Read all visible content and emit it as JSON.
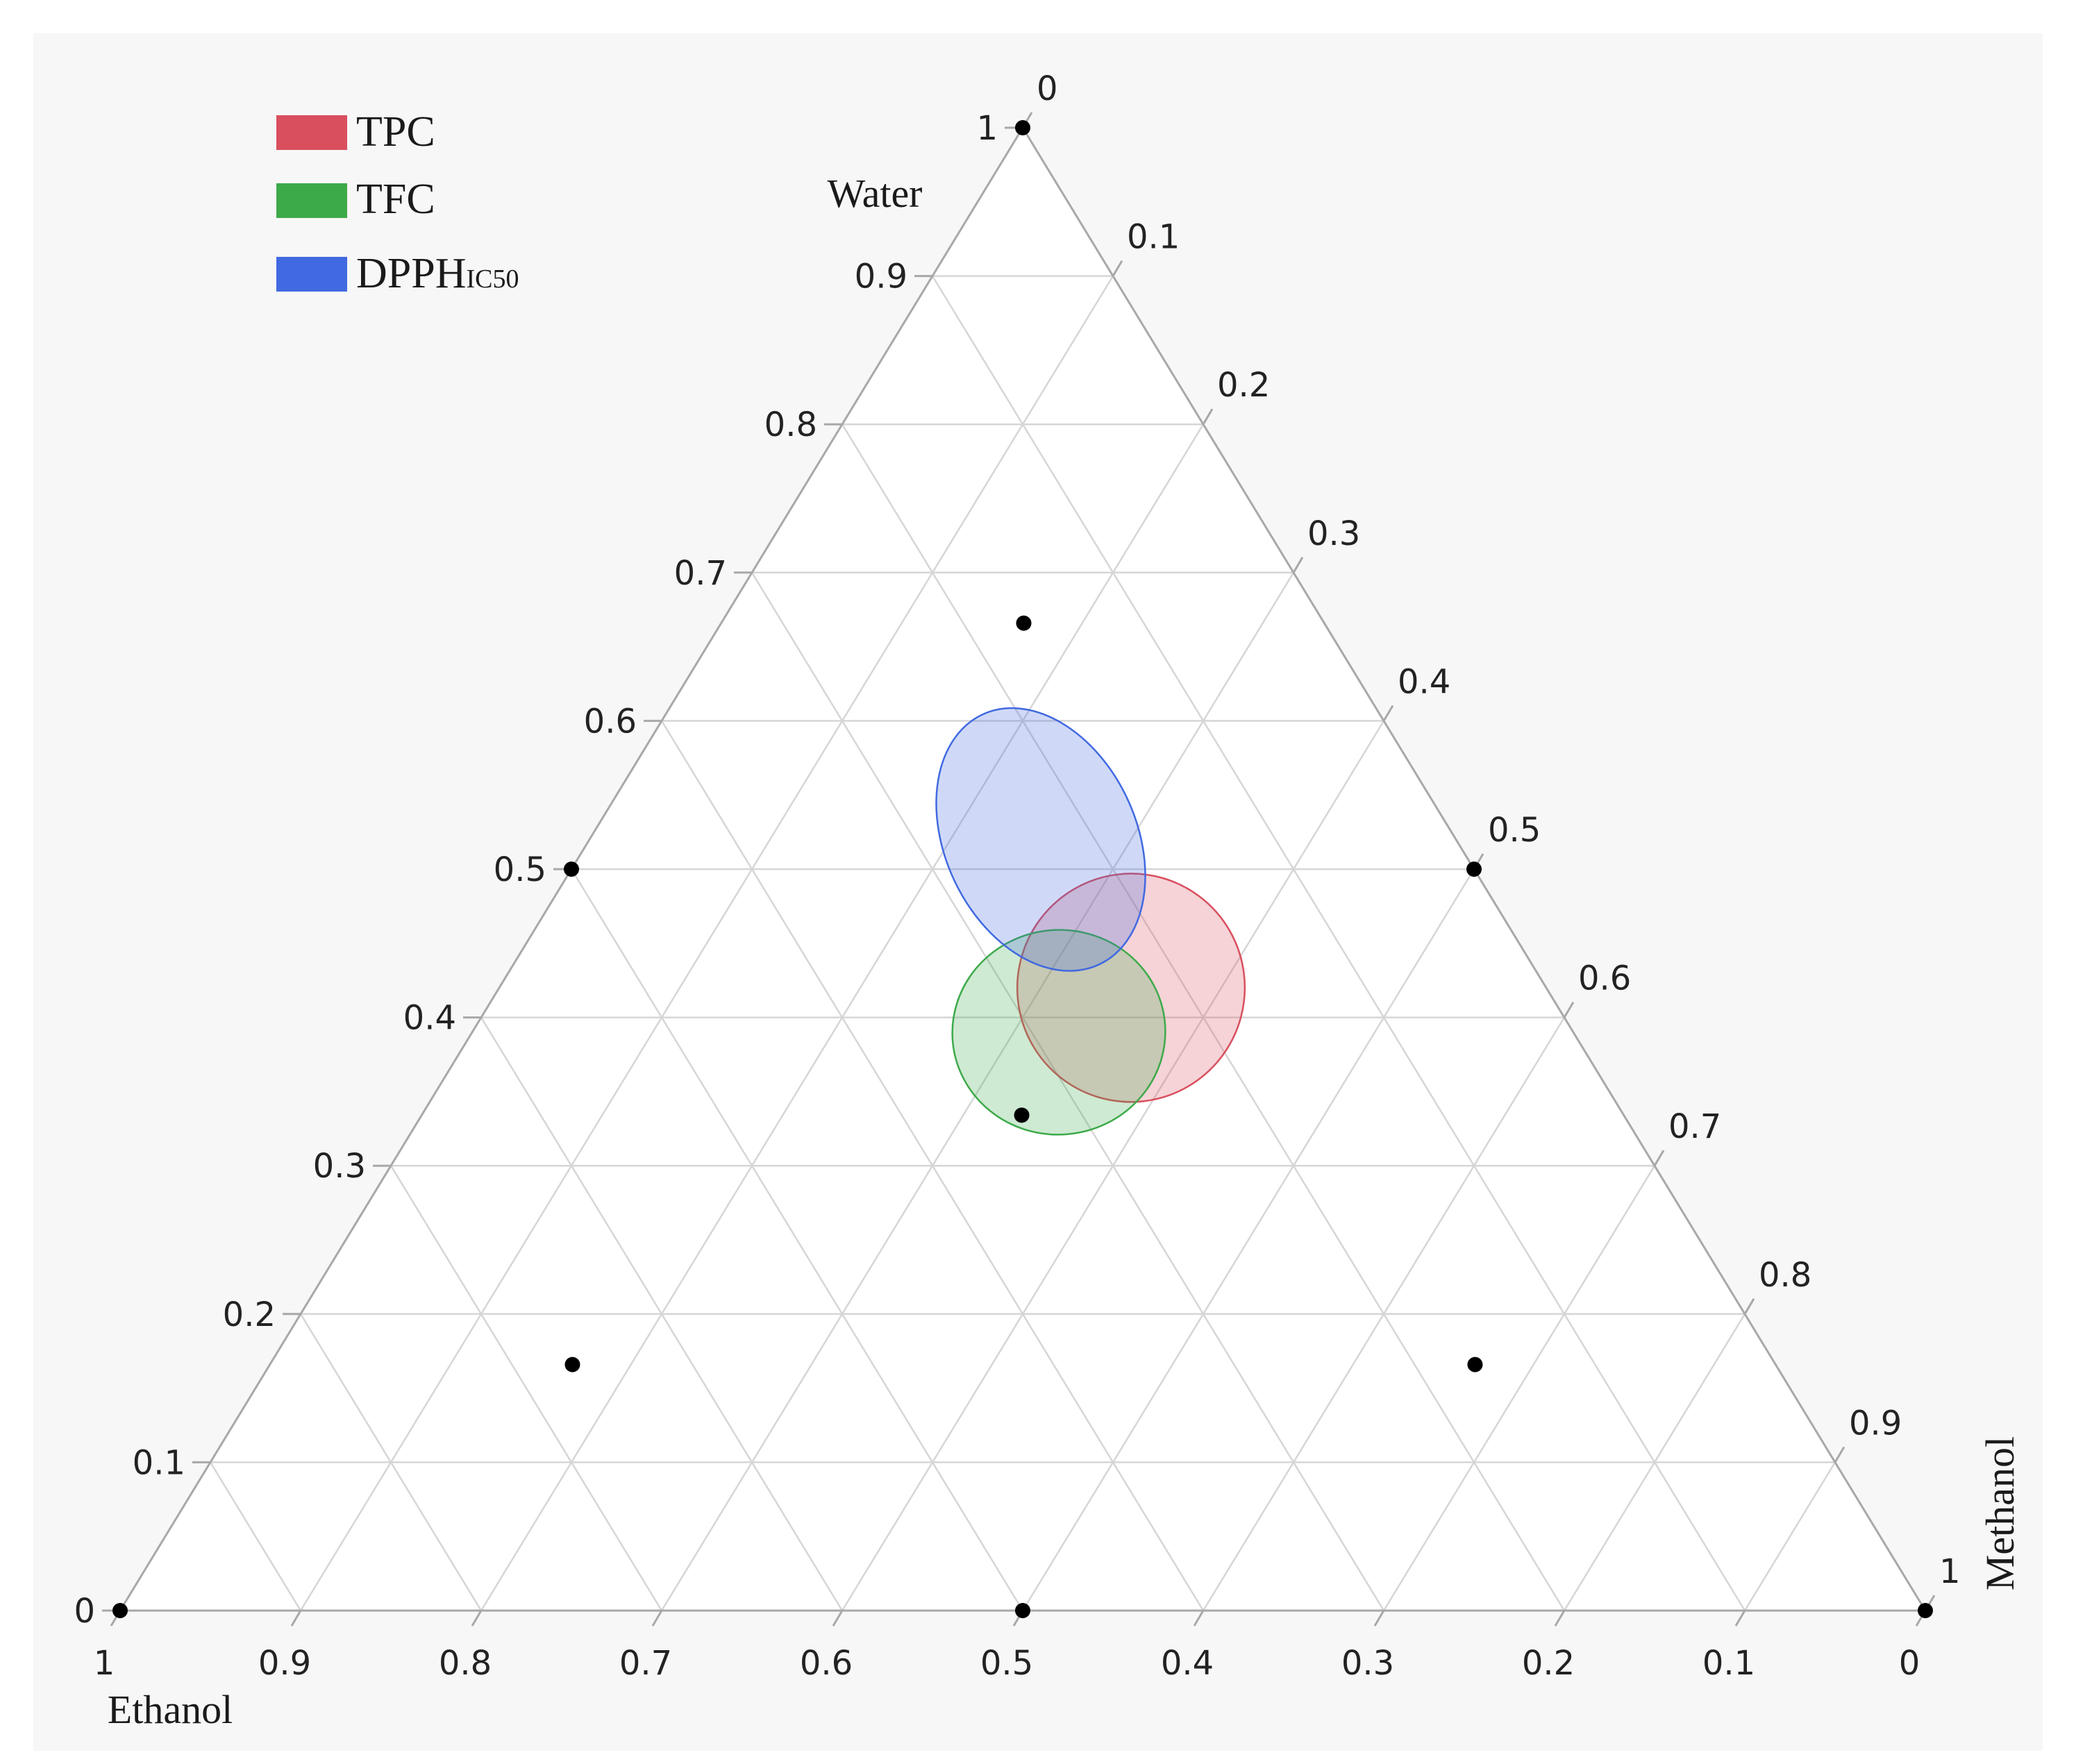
{
  "chart_data": {
    "type": "ternary",
    "axes": {
      "water": {
        "label": "Water",
        "ticks": [
          "0",
          "0.1",
          "0.2",
          "0.3",
          "0.4",
          "0.5",
          "0.6",
          "0.7",
          "0.8",
          "0.9",
          "1"
        ]
      },
      "ethanol": {
        "label": "Ethanol",
        "ticks": [
          "0",
          "0.1",
          "0.2",
          "0.3",
          "0.4",
          "0.5",
          "0.6",
          "0.7",
          "0.8",
          "0.9",
          "1"
        ]
      },
      "methanol": {
        "label": "Methanol",
        "ticks": [
          "0",
          "0.1",
          "0.2",
          "0.3",
          "0.4",
          "0.5",
          "0.6",
          "0.7",
          "0.8",
          "0.9",
          "1"
        ]
      }
    },
    "grid": true,
    "design_points": [
      {
        "water": 1,
        "ethanol": 0,
        "methanol": 0
      },
      {
        "water": 0,
        "ethanol": 1,
        "methanol": 0
      },
      {
        "water": 0,
        "ethanol": 0,
        "methanol": 1
      },
      {
        "water": 0.5,
        "ethanol": 0.5,
        "methanol": 0
      },
      {
        "water": 0.5,
        "ethanol": 0,
        "methanol": 0.5
      },
      {
        "water": 0,
        "ethanol": 0.5,
        "methanol": 0.5
      },
      {
        "water": 0.667,
        "ethanol": 0.167,
        "methanol": 0.167
      },
      {
        "water": 0.167,
        "ethanol": 0.667,
        "methanol": 0.167
      },
      {
        "water": 0.167,
        "ethanol": 0.167,
        "methanol": 0.667
      },
      {
        "water": 0.333,
        "ethanol": 0.333,
        "methanol": 0.333
      }
    ],
    "regions": [
      {
        "name": "TPC",
        "color": "#d94f5e",
        "center": {
          "water": 0.42,
          "ethanol": 0.23,
          "methanol": 0.35
        },
        "rx": 0.063,
        "ry": 0.077,
        "rotate_deg": 15
      },
      {
        "name": "TFC",
        "color": "#3daa4a",
        "center": {
          "water": 0.39,
          "ethanol": 0.285,
          "methanol": 0.325
        },
        "rx": 0.059,
        "ry": 0.069,
        "rotate_deg": -5
      },
      {
        "name": "DPPHIC50",
        "color": "#4169e1",
        "center": {
          "water": 0.52,
          "ethanol": 0.23,
          "methanol": 0.25
        },
        "rx": 0.053,
        "ry": 0.093,
        "rotate_deg": -25
      }
    ],
    "legend": {
      "placement": "top-left",
      "items": [
        {
          "label": "TPC",
          "sub": "",
          "color": "#d94f5e"
        },
        {
          "label": "TFC",
          "sub": "",
          "color": "#3daa4a"
        },
        {
          "label": "DPPH",
          "sub": "IC50",
          "color": "#4169e1"
        }
      ]
    },
    "colors": {
      "background": "#f7f7f7",
      "plot": "#ffffff",
      "grid": "#d6d6d6",
      "frame": "#a8a8a8",
      "points": "#000000"
    }
  }
}
